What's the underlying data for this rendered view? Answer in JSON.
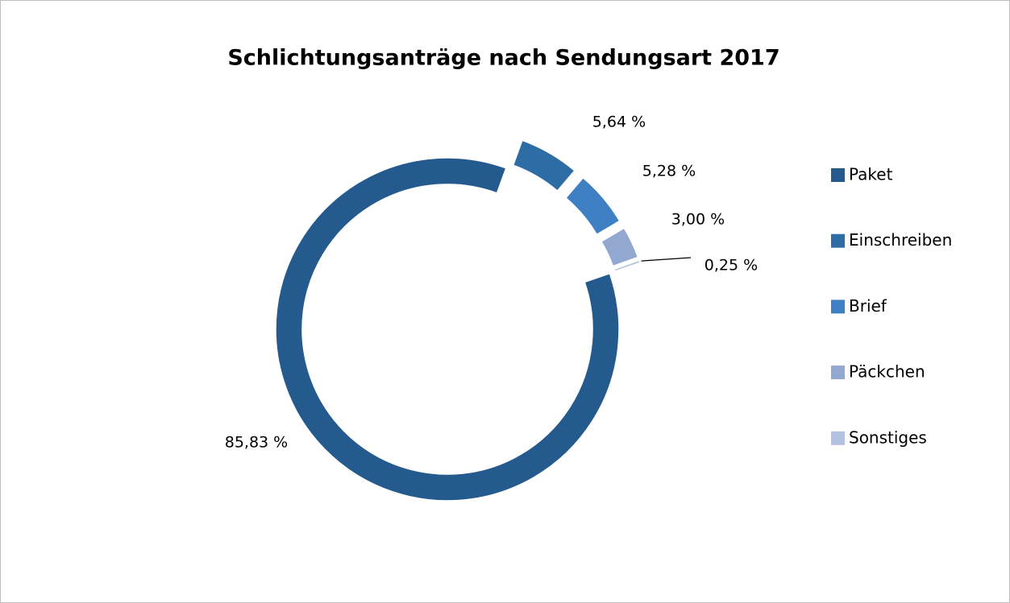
{
  "chart_data": {
    "type": "donut",
    "title": "Schlichtungsanträge nach Sendungsart 2017",
    "categories": [
      "Paket",
      "Einschreiben",
      "Brief",
      "Päckchen",
      "Sonstiges"
    ],
    "values": [
      85.83,
      5.64,
      5.28,
      3.0,
      0.25
    ],
    "value_labels": [
      "85,83 %",
      "5,64 %",
      "5,28 %",
      "3,00 %",
      "0,25 %"
    ],
    "colors": [
      "#245a8d",
      "#2e6ca6",
      "#3f7fc4",
      "#93a8d1",
      "#b3c2e1"
    ],
    "legend": "right"
  }
}
